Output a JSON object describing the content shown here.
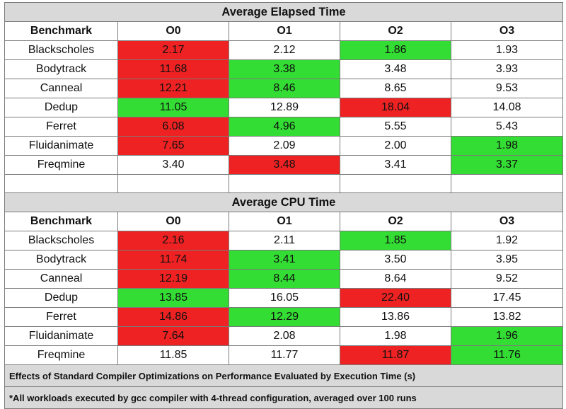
{
  "chart_data": [
    {
      "type": "table",
      "title": "Average Elapsed Time",
      "columns": [
        "Benchmark",
        "O0",
        "O1",
        "O2",
        "O3"
      ],
      "rows": [
        {
          "name": "Blackscholes",
          "values": [
            "2.17",
            "2.12",
            "1.86",
            "1.93"
          ],
          "highlight": [
            "red",
            "",
            "green",
            ""
          ]
        },
        {
          "name": "Bodytrack",
          "values": [
            "11.68",
            "3.38",
            "3.48",
            "3.93"
          ],
          "highlight": [
            "red",
            "green",
            "",
            ""
          ]
        },
        {
          "name": "Canneal",
          "values": [
            "12.21",
            "8.46",
            "8.65",
            "9.53"
          ],
          "highlight": [
            "red",
            "green",
            "",
            ""
          ]
        },
        {
          "name": "Dedup",
          "values": [
            "11.05",
            "12.89",
            "18.04",
            "14.08"
          ],
          "highlight": [
            "green",
            "",
            "red",
            ""
          ]
        },
        {
          "name": "Ferret",
          "values": [
            "6.08",
            "4.96",
            "5.55",
            "5.43"
          ],
          "highlight": [
            "red",
            "green",
            "",
            ""
          ]
        },
        {
          "name": "Fluidanimate",
          "values": [
            "7.65",
            "2.09",
            "2.00",
            "1.98"
          ],
          "highlight": [
            "red",
            "",
            "",
            "green"
          ]
        },
        {
          "name": "Freqmine",
          "values": [
            "3.40",
            "3.48",
            "3.41",
            "3.37"
          ],
          "highlight": [
            "",
            "red",
            "",
            "green"
          ]
        }
      ]
    },
    {
      "type": "table",
      "title": "Average CPU Time",
      "columns": [
        "Benchmark",
        "O0",
        "O1",
        "O2",
        "O3"
      ],
      "rows": [
        {
          "name": "Blackscholes",
          "values": [
            "2.16",
            "2.11",
            "1.85",
            "1.92"
          ],
          "highlight": [
            "red",
            "",
            "green",
            ""
          ]
        },
        {
          "name": "Bodytrack",
          "values": [
            "11.74",
            "3.41",
            "3.50",
            "3.95"
          ],
          "highlight": [
            "red",
            "green",
            "",
            ""
          ]
        },
        {
          "name": "Canneal",
          "values": [
            "12.19",
            "8.44",
            "8.64",
            "9.52"
          ],
          "highlight": [
            "red",
            "green",
            "",
            ""
          ]
        },
        {
          "name": "Dedup",
          "values": [
            "13.85",
            "16.05",
            "22.40",
            "17.45"
          ],
          "highlight": [
            "green",
            "",
            "red",
            ""
          ]
        },
        {
          "name": "Ferret",
          "values": [
            "14.86",
            "12.29",
            "13.86",
            "13.82"
          ],
          "highlight": [
            "red",
            "green",
            "",
            ""
          ]
        },
        {
          "name": "Fluidanimate",
          "values": [
            "7.64",
            "2.08",
            "1.98",
            "1.96"
          ],
          "highlight": [
            "red",
            "",
            "",
            "green"
          ]
        },
        {
          "name": "Freqmine",
          "values": [
            "11.85",
            "11.77",
            "11.87",
            "11.76"
          ],
          "highlight": [
            "",
            "",
            "red",
            "green"
          ]
        }
      ]
    }
  ],
  "footer": {
    "caption": "Effects of Standard Compiler Optimizations on Performance Evaluated by Execution Time (s)",
    "note": "*All workloads executed by gcc compiler with 4-thread configuration, averaged over 100 runs"
  },
  "colors": {
    "red": "#ee2222",
    "green": "#33dd33",
    "header_gray": "#d9d9d9"
  }
}
